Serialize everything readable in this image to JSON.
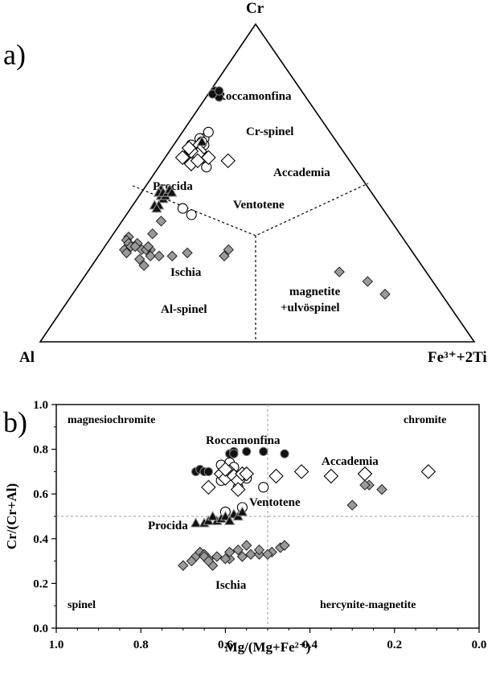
{
  "chart_data": [
    {
      "type": "scatter",
      "subtype": "ternary",
      "panel_label": "a)",
      "vertices": {
        "top": "Cr",
        "left": "Al",
        "right": "Fe³⁺+2Ti"
      },
      "regions": [
        "Cr-spinel",
        "Al-spinel",
        "magnetite +ulvöspinel"
      ],
      "region_labels": {
        "cr_spinel": "Cr-spinel",
        "al_spinel": "Al-spinel",
        "mag_line1": "magnetite",
        "mag_line2": "+ulvöspinel"
      },
      "group_labels": {
        "roccamonfina": "Roccamonfina",
        "accademia": "Accademia",
        "procida": "Procida",
        "ventotene": "Ventotene",
        "ischia": "Ischia"
      },
      "note": "points as ternary fractions [Cr, Al, Fe3+ +2Ti]",
      "series": [
        {
          "name": "Roccamonfina",
          "marker": "filled-circle",
          "points": [
            [
              0.79,
              0.2,
              0.01
            ],
            [
              0.78,
              0.2,
              0.02
            ],
            [
              0.77,
              0.2,
              0.03
            ],
            [
              0.78,
              0.21,
              0.01
            ],
            [
              0.79,
              0.19,
              0.02
            ]
          ]
        },
        {
          "name": "Cr-spinel (open circles)",
          "marker": "open-circle",
          "points": [
            [
              0.64,
              0.3,
              0.06
            ],
            [
              0.66,
              0.28,
              0.06
            ],
            [
              0.62,
              0.31,
              0.07
            ],
            [
              0.58,
              0.33,
              0.09
            ],
            [
              0.62,
              0.34,
              0.04
            ],
            [
              0.64,
              0.31,
              0.05
            ],
            [
              0.55,
              0.34,
              0.11
            ],
            [
              0.42,
              0.46,
              0.12
            ],
            [
              0.4,
              0.45,
              0.15
            ],
            [
              0.63,
              0.31,
              0.06
            ],
            [
              0.6,
              0.33,
              0.07
            ]
          ]
        },
        {
          "name": "Accademia",
          "marker": "open-diamond",
          "points": [
            [
              0.62,
              0.32,
              0.06
            ],
            [
              0.6,
              0.33,
              0.07
            ],
            [
              0.59,
              0.34,
              0.07
            ],
            [
              0.58,
              0.38,
              0.04
            ],
            [
              0.58,
              0.32,
              0.1
            ],
            [
              0.56,
              0.37,
              0.07
            ],
            [
              0.57,
              0.35,
              0.08
            ],
            [
              0.57,
              0.28,
              0.15
            ],
            [
              0.6,
              0.35,
              0.05
            ],
            [
              0.61,
              0.35,
              0.04
            ]
          ]
        },
        {
          "name": "Procida",
          "marker": "filled-triangle",
          "points": [
            [
              0.48,
              0.48,
              0.04
            ],
            [
              0.47,
              0.49,
              0.04
            ],
            [
              0.48,
              0.46,
              0.06
            ],
            [
              0.46,
              0.49,
              0.05
            ],
            [
              0.45,
              0.49,
              0.06
            ],
            [
              0.47,
              0.49,
              0.04
            ],
            [
              0.46,
              0.48,
              0.06
            ],
            [
              0.47,
              0.48,
              0.05
            ],
            [
              0.47,
              0.47,
              0.06
            ],
            [
              0.48,
              0.46,
              0.06
            ],
            [
              0.63,
              0.31,
              0.06
            ],
            [
              0.43,
              0.52,
              0.05
            ],
            [
              0.43,
              0.51,
              0.06
            ],
            [
              0.42,
              0.52,
              0.06
            ],
            [
              0.47,
              0.46,
              0.07
            ]
          ]
        },
        {
          "name": "Ischia",
          "marker": "grey-diamond",
          "points": [
            [
              0.38,
              0.53,
              0.09
            ],
            [
              0.34,
              0.57,
              0.09
            ],
            [
              0.33,
              0.63,
              0.04
            ],
            [
              0.32,
              0.64,
              0.04
            ],
            [
              0.31,
              0.64,
              0.05
            ],
            [
              0.29,
              0.66,
              0.05
            ],
            [
              0.31,
              0.62,
              0.07
            ],
            [
              0.29,
              0.6,
              0.11
            ],
            [
              0.29,
              0.62,
              0.09
            ],
            [
              0.3,
              0.64,
              0.06
            ],
            [
              0.28,
              0.66,
              0.06
            ],
            [
              0.29,
              0.61,
              0.1
            ],
            [
              0.3,
              0.6,
              0.1
            ],
            [
              0.27,
              0.61,
              0.12
            ],
            [
              0.27,
              0.59,
              0.14
            ],
            [
              0.24,
              0.64,
              0.12
            ],
            [
              0.3,
              0.63,
              0.07
            ],
            [
              0.26,
              0.64,
              0.1
            ],
            [
              0.27,
              0.56,
              0.17
            ],
            [
              0.27,
              0.44,
              0.29
            ],
            [
              0.29,
              0.42,
              0.29
            ],
            [
              0.28,
              0.52,
              0.2
            ],
            [
              0.22,
              0.2,
              0.58
            ],
            [
              0.19,
              0.15,
              0.66
            ],
            [
              0.15,
              0.13,
              0.72
            ]
          ]
        }
      ]
    },
    {
      "type": "scatter",
      "panel_label": "b)",
      "xlabel": "Mg/(Mg+Fe²⁺)",
      "ylabel": "Cr/(Cr+Al)",
      "xlim": [
        1.0,
        0.0
      ],
      "ylim": [
        0.0,
        1.0
      ],
      "xticks": [
        "1.0",
        "0.8",
        "0.6",
        "0.4",
        "0.2",
        "0.0"
      ],
      "yticks": [
        "0.0",
        "0.2",
        "0.4",
        "0.6",
        "0.8",
        "1.0"
      ],
      "divider_lines": {
        "x": 0.5,
        "y": 0.5
      },
      "field_labels": {
        "magnesiochromite": "magnesiochromite",
        "chromite": "chromite",
        "spinel": "spinel",
        "hercynite_magnetite": "hercynite-magnetite"
      },
      "group_labels": {
        "roccamonfina": "Roccamonfina",
        "accademia": "Accademia",
        "ventotene": "Ventotene",
        "procida": "Procida",
        "ischia": "Ischia"
      },
      "series": [
        {
          "name": "Roccamonfina",
          "marker": "filled-circle",
          "x": [
            0.67,
            0.66,
            0.65,
            0.64,
            0.59,
            0.58,
            0.58,
            0.55,
            0.51,
            0.46
          ],
          "y": [
            0.7,
            0.71,
            0.7,
            0.7,
            0.78,
            0.79,
            0.78,
            0.79,
            0.79,
            0.78
          ]
        },
        {
          "name": "Cr-spinel (open circles)",
          "marker": "open-circle",
          "x": [
            0.61,
            0.59,
            0.58,
            0.61,
            0.57,
            0.55,
            0.51,
            0.56,
            0.6
          ],
          "y": [
            0.73,
            0.74,
            0.72,
            0.66,
            0.63,
            0.67,
            0.63,
            0.54,
            0.52
          ]
        },
        {
          "name": "Accademia",
          "marker": "open-diamond",
          "x": [
            0.61,
            0.6,
            0.59,
            0.58,
            0.57,
            0.56,
            0.55,
            0.6,
            0.64,
            0.57,
            0.48,
            0.42,
            0.35,
            0.27,
            0.12
          ],
          "y": [
            0.69,
            0.67,
            0.7,
            0.68,
            0.66,
            0.69,
            0.69,
            0.71,
            0.63,
            0.62,
            0.68,
            0.7,
            0.68,
            0.69,
            0.7
          ]
        },
        {
          "name": "Procida",
          "marker": "filled-triangle",
          "x": [
            0.67,
            0.65,
            0.64,
            0.62,
            0.61,
            0.6,
            0.58,
            0.63,
            0.59,
            0.57,
            0.56
          ],
          "y": [
            0.47,
            0.47,
            0.48,
            0.48,
            0.49,
            0.5,
            0.51,
            0.5,
            0.48,
            0.5,
            0.52
          ]
        },
        {
          "name": "Ischia",
          "marker": "grey-diamond",
          "x": [
            0.7,
            0.67,
            0.66,
            0.65,
            0.64,
            0.62,
            0.68,
            0.63,
            0.59,
            0.56,
            0.54,
            0.52,
            0.49,
            0.47,
            0.46,
            0.57,
            0.59,
            0.55,
            0.52,
            0.5,
            0.6,
            0.65,
            0.64,
            0.3,
            0.26,
            0.23,
            0.27
          ],
          "y": [
            0.28,
            0.32,
            0.34,
            0.33,
            0.31,
            0.32,
            0.3,
            0.28,
            0.31,
            0.32,
            0.33,
            0.33,
            0.34,
            0.36,
            0.37,
            0.35,
            0.34,
            0.37,
            0.35,
            0.33,
            0.31,
            0.32,
            0.3,
            0.55,
            0.64,
            0.62,
            0.64
          ]
        }
      ]
    }
  ]
}
